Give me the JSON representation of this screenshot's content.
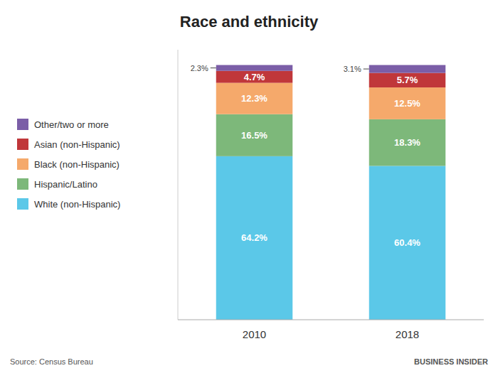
{
  "chart_data": {
    "type": "bar",
    "stacked": true,
    "title": "Race and ethnicity",
    "categories": [
      "2010",
      "2018"
    ],
    "series": [
      {
        "name": "White (non-Hispanic)",
        "color": "#5BC8E8",
        "values": [
          64.2,
          60.4
        ],
        "value_labels": [
          "64.2%",
          "60.4%"
        ]
      },
      {
        "name": "Hispanic/Latino",
        "color": "#7DB87A",
        "values": [
          16.5,
          18.3
        ],
        "value_labels": [
          "16.5%",
          "18.3%"
        ]
      },
      {
        "name": "Black (non-Hispanic)",
        "color": "#F5A96B",
        "values": [
          12.3,
          12.5
        ],
        "value_labels": [
          "12.3%",
          "12.5%"
        ]
      },
      {
        "name": "Asian (non-Hispanic)",
        "color": "#C0373A",
        "values": [
          4.7,
          5.7
        ],
        "value_labels": [
          "4.7%",
          "5.7%"
        ]
      },
      {
        "name": "Other/two or more",
        "color": "#7B5EA7",
        "values": [
          2.3,
          3.1
        ],
        "value_labels": [
          "2.3%",
          "3.1%"
        ]
      }
    ],
    "ylim": [
      0,
      106
    ],
    "yticks": [],
    "tick_labels": "x",
    "data_labels": true,
    "legend": "upper left",
    "grid": false,
    "annotations": [
      "Source: Census Bureau",
      "BUSINESS INSIDER"
    ]
  }
}
